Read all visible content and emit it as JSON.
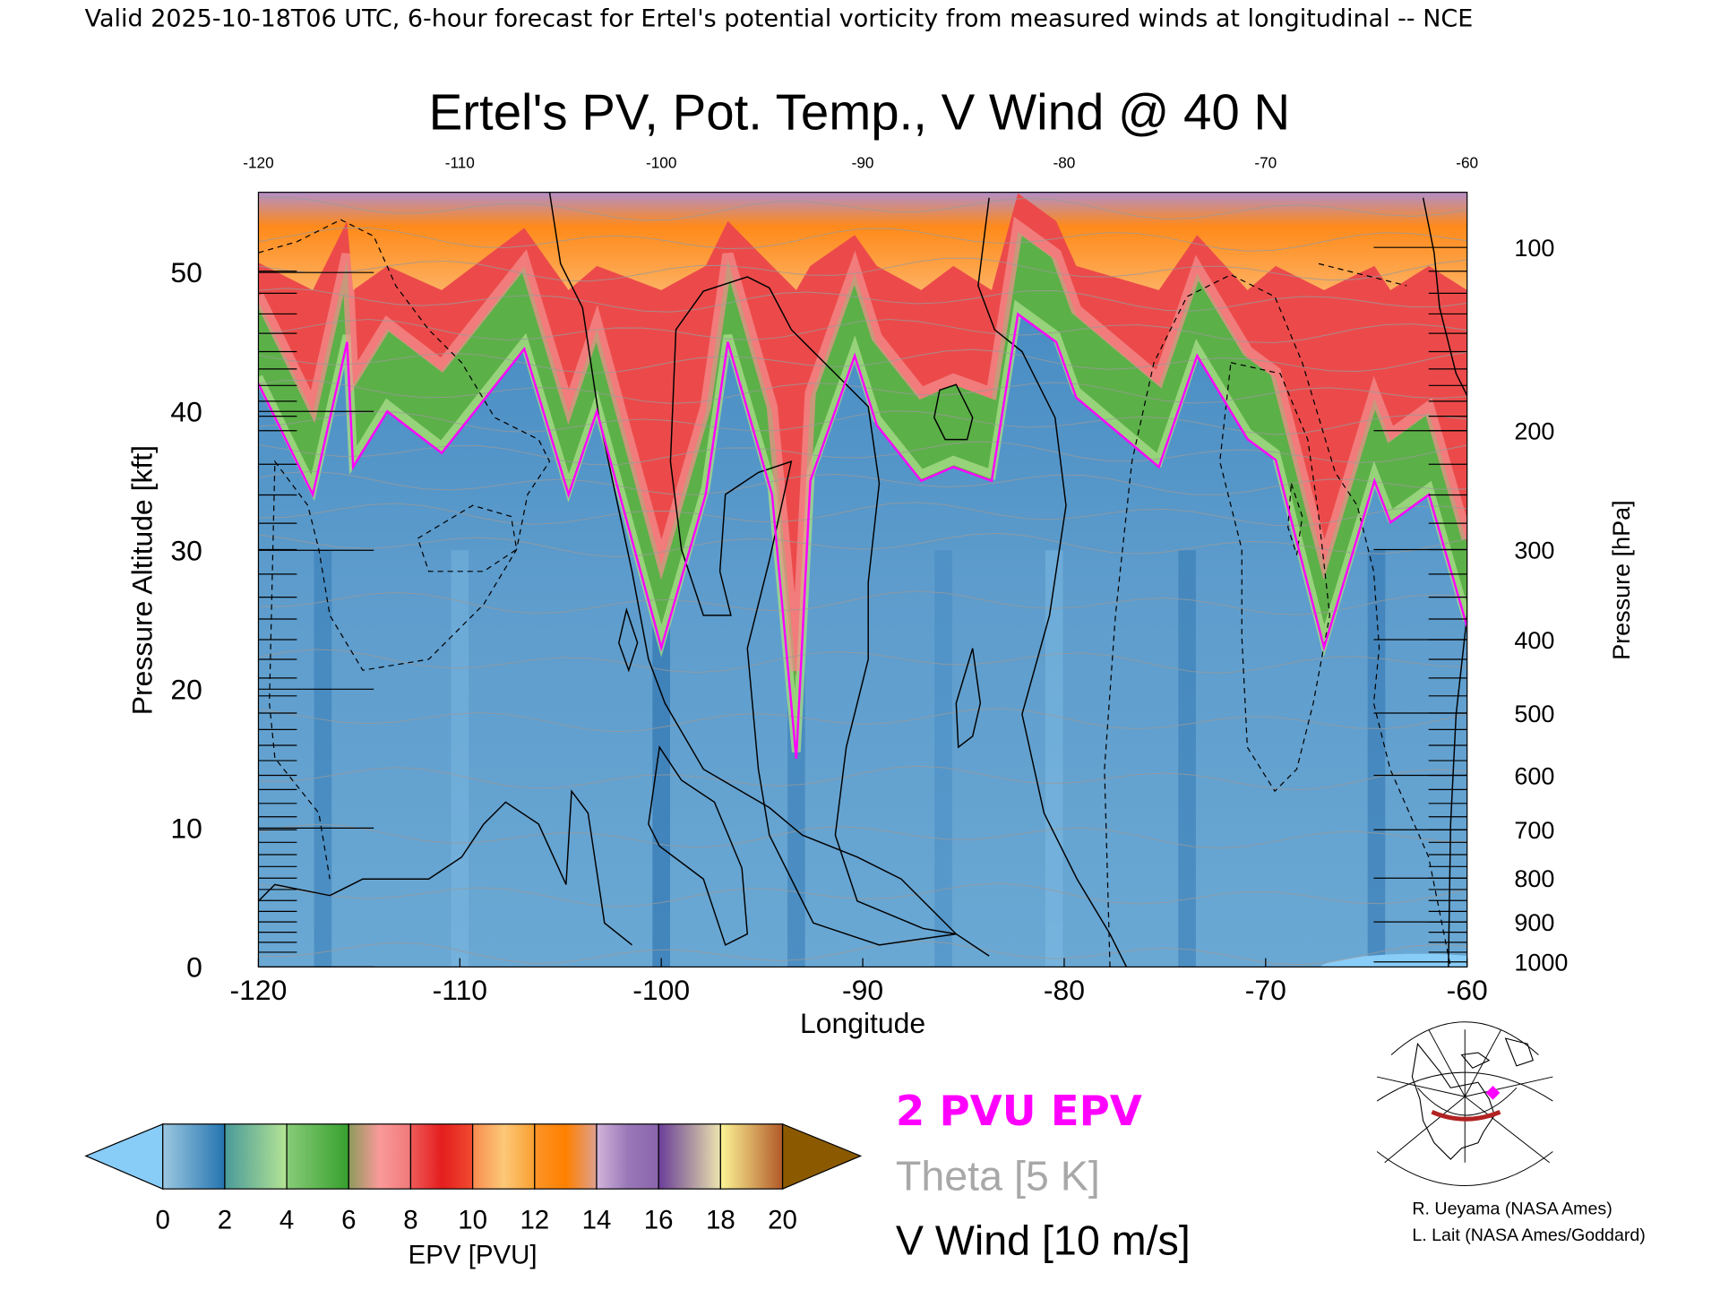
{
  "header": {
    "caption": "Valid 2025-10-18T06 UTC, 6-hour forecast for Ertel's potential vorticity from measured winds at longitudinal -- NCE"
  },
  "chart_data": {
    "type": "heatmap",
    "title": "Ertel's PV, Pot. Temp., V Wind @ 40 N",
    "xlabel": "Longitude",
    "ylabel": "Pressure Altitude [kft]",
    "y2label": "Pressure [hPa]",
    "xlim": [
      -120,
      -60
    ],
    "ylim": [
      0,
      56
    ],
    "x_ticks": [
      "-120",
      "-110",
      "-100",
      "-90",
      "-80",
      "-70",
      "-60"
    ],
    "x_tick_values": [
      -120,
      -110,
      -100,
      -90,
      -80,
      -70,
      -60
    ],
    "y_ticks": [
      "0",
      "10",
      "20",
      "30",
      "40",
      "50"
    ],
    "y_tick_values": [
      0,
      10,
      20,
      30,
      40,
      50
    ],
    "y2_ticks": [
      "100",
      "200",
      "300",
      "400",
      "500",
      "600",
      "700",
      "800",
      "900",
      "1000"
    ],
    "y2_tick_values": [
      100,
      200,
      300,
      400,
      500,
      600,
      700,
      800,
      900,
      1000
    ],
    "colorbar": {
      "label": "EPV [PVU]",
      "ticks": [
        "0",
        "2",
        "4",
        "6",
        "8",
        "10",
        "12",
        "14",
        "16",
        "18",
        "20"
      ],
      "under_color": "#88ccf8",
      "over_color": "#8b5a00",
      "segments": [
        [
          "#9cc8e0",
          "#2474b0"
        ],
        [
          "#4a9a9a",
          "#b4e494"
        ],
        [
          "#88cc78",
          "#36a02e"
        ],
        [
          "#8c9a5c",
          "#fa9a9a",
          "#f07878"
        ],
        [
          "#f05a5a",
          "#e41e1e",
          "#f04a30"
        ],
        [
          "#f88c50",
          "#fdc878",
          "#f8a030"
        ],
        [
          "#fc9428",
          "#ff8000",
          "#dea090"
        ],
        [
          "#d2b4da",
          "#9a78b8",
          "#8a64ac"
        ],
        [
          "#6a3d9a",
          "#a890a0",
          "#eee4b0"
        ],
        [
          "#fbf495",
          "#d8a860",
          "#b15928"
        ]
      ]
    },
    "legend": {
      "pv_line": "2 PVU EPV",
      "pv_color": "#ff00ff",
      "theta": "Theta [5 K]",
      "theta_color": "#a8a8a8",
      "wind": "V Wind [10 m/s]",
      "wind_color": "#000000"
    },
    "tropopause_2pvu": {
      "name": "2 PVU EPV",
      "longitude": [
        -120,
        -117.3,
        -115.6,
        -115.3,
        -113.6,
        -110.9,
        -106.8,
        -104.6,
        -103.2,
        -100,
        -97.8,
        -96.7,
        -94.5,
        -93.3,
        -92.6,
        -90.4,
        -89.3,
        -87.1,
        -85.5,
        -83.6,
        -82.3,
        -80.4,
        -79.4,
        -75.3,
        -73.4,
        -70.9,
        -69.5,
        -67.1,
        -64.6,
        -63.8,
        -61.9,
        -60
      ],
      "height_kft": [
        42,
        34,
        45,
        36,
        40,
        37,
        44.5,
        34,
        40,
        23,
        34,
        45,
        34,
        15,
        35,
        44,
        39,
        35,
        36,
        35,
        47,
        45,
        41,
        36,
        44,
        38,
        36.5,
        23,
        35,
        32,
        34,
        24.5
      ]
    }
  },
  "map_inset": {
    "marker_color": "#ff00ff",
    "section_color": "#b22222"
  },
  "credits": {
    "line1": "R. Ueyama (NASA Ames)",
    "line2": "L. Lait (NASA Ames/Goddard)"
  }
}
